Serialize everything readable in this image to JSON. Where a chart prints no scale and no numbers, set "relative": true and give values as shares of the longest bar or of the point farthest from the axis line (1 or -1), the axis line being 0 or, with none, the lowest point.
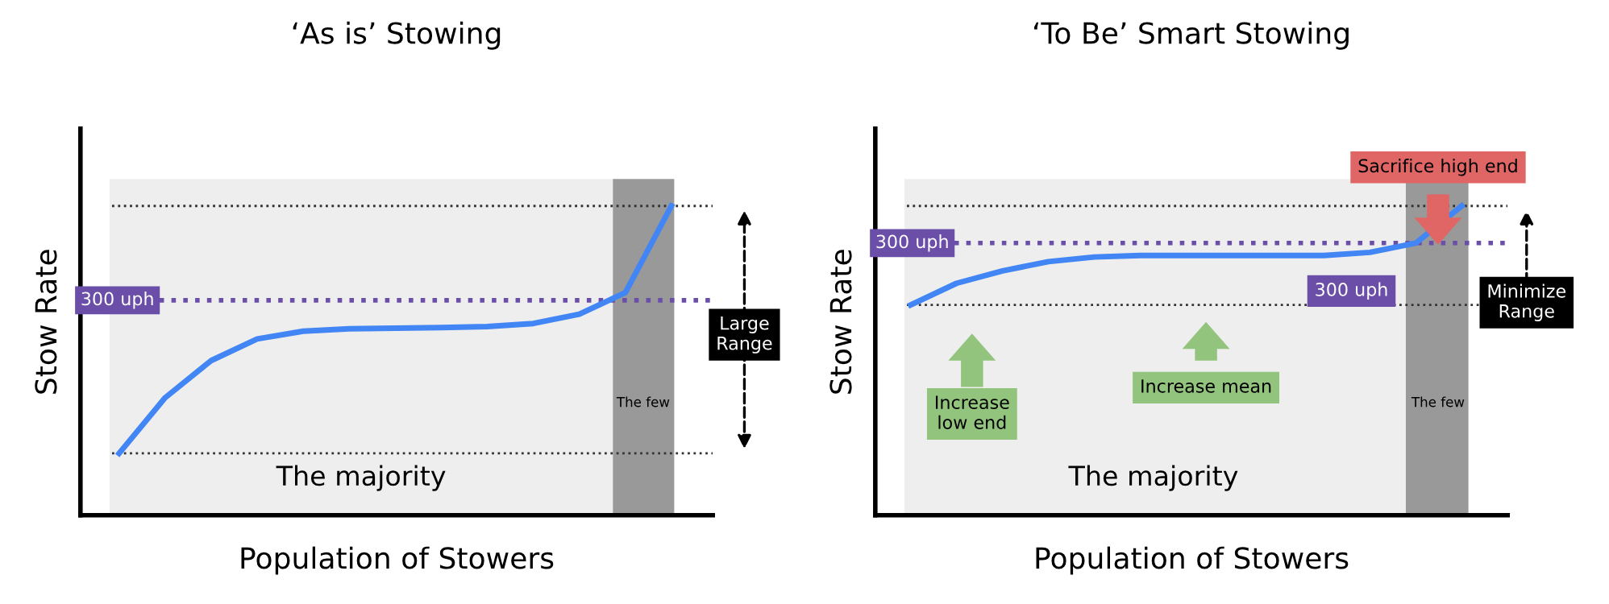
{
  "chart_data": [
    {
      "type": "line",
      "title": "‘As is’ Stowing",
      "xlabel": "Population of Stowers",
      "ylabel": "Stow Rate",
      "relative": true,
      "marker": "none",
      "line_style": "solid",
      "categories": [
        null,
        null,
        null,
        null,
        null,
        null,
        null,
        null,
        null,
        null,
        null,
        null,
        null
      ],
      "series": [
        {
          "color": "#4285f4",
          "values": [
            0.2,
            0.38,
            0.5,
            0.57,
            0.595,
            0.603,
            0.605,
            0.607,
            0.61,
            0.62,
            0.65,
            0.72,
            1.0
          ]
        }
      ],
      "ref_lines": [
        {
          "axis": "y",
          "value": 0.695,
          "label": "300 uph",
          "color": "#6a4ea8",
          "line_style": "dotted"
        },
        {
          "axis": "y",
          "value": 1.0,
          "label": null,
          "color": "#333333",
          "line_style": "dotted"
        },
        {
          "axis": "y",
          "value": 0.2,
          "label": null,
          "color": "#333333",
          "line_style": "dotted"
        }
      ],
      "annotations": [
        "The majority",
        "The few",
        "Large Range"
      ]
    },
    {
      "type": "line",
      "title": "‘To Be’ Smart Stowing",
      "xlabel": "Population of Stowers",
      "ylabel": "Stow Rate",
      "relative": true,
      "marker": "none",
      "line_style": "solid",
      "categories": [
        null,
        null,
        null,
        null,
        null,
        null,
        null,
        null,
        null,
        null,
        null,
        null,
        null
      ],
      "series": [
        {
          "color": "#4285f4",
          "values": [
            0.68,
            0.75,
            0.79,
            0.82,
            0.835,
            0.84,
            0.84,
            0.84,
            0.84,
            0.84,
            0.85,
            0.88,
            1.0
          ]
        }
      ],
      "ref_lines": [
        {
          "axis": "y",
          "value": 0.88,
          "label": "300 uph",
          "color": "#6a4ea8",
          "line_style": "dotted"
        },
        {
          "axis": "y",
          "value": 1.0,
          "label": null,
          "color": "#333333",
          "line_style": "dotted"
        },
        {
          "axis": "y",
          "value": 0.68,
          "label": null,
          "color": "#333333",
          "line_style": "dotted"
        }
      ],
      "annotations": [
        "The majority",
        "The few",
        "Sacrifice high end",
        "Increase low end",
        "Increase mean",
        "Minimize Range",
        "300 uph"
      ]
    }
  ]
}
